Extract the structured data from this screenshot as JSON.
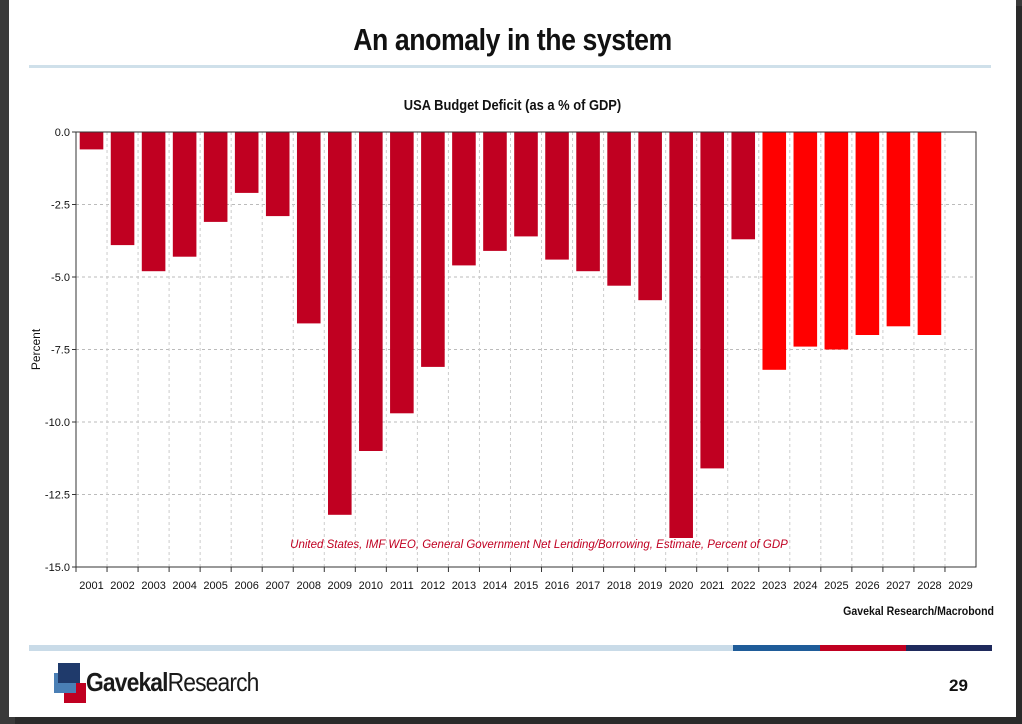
{
  "slide": {
    "title": "An anomaly in the system",
    "page_number": "29",
    "source_credit": "Gavekal Research/Macrobond",
    "logo_bold": "Gavekal",
    "logo_regular": "Research"
  },
  "colors": {
    "actual_bar": "#c00021",
    "forecast_bar": "#ff0000",
    "footer": [
      "#c9dbe8",
      "#1f5c99",
      "#c00021",
      "#1f2a5c"
    ]
  },
  "chart_data": {
    "type": "bar",
    "title": "USA Budget Deficit (as a % of GDP)",
    "ylabel": "Percent",
    "xlabel": "",
    "ylim": [
      -15.0,
      0.0
    ],
    "yticks": [
      "0.0",
      "-2.5",
      "-5.0",
      "-7.5",
      "-10.0",
      "-12.5",
      "-15.0"
    ],
    "grid": true,
    "annotation": "United States, IMF WEO, General Government Net Lending/Borrowing, Estimate, Percent of GDP",
    "categories": [
      "2001",
      "2002",
      "2003",
      "2004",
      "2005",
      "2006",
      "2007",
      "2008",
      "2009",
      "2010",
      "2011",
      "2012",
      "2013",
      "2014",
      "2015",
      "2016",
      "2017",
      "2018",
      "2019",
      "2020",
      "2021",
      "2022",
      "2023",
      "2024",
      "2025",
      "2026",
      "2027",
      "2028",
      "2029"
    ],
    "values": [
      -0.6,
      -3.9,
      -4.8,
      -4.3,
      -3.1,
      -2.1,
      -2.9,
      -6.6,
      -13.2,
      -11.0,
      -9.7,
      -8.1,
      -4.6,
      -4.1,
      -3.6,
      -4.4,
      -4.8,
      -5.3,
      -5.8,
      -14.0,
      -11.6,
      -3.7,
      -8.2,
      -7.4,
      -7.5,
      -7.0,
      -6.7,
      -7.0,
      null
    ],
    "forecast_from": "2023"
  }
}
